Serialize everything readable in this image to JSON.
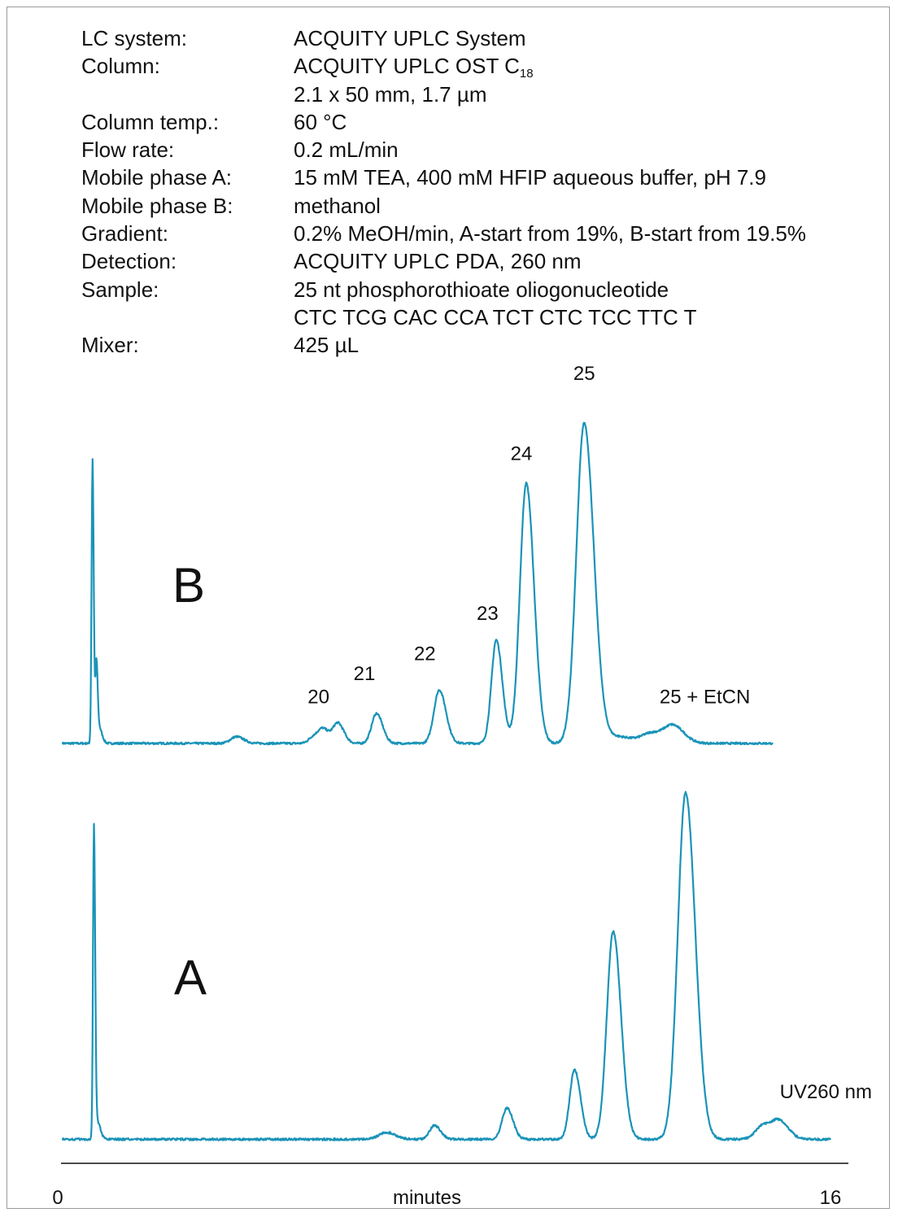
{
  "conditions": [
    {
      "label": "LC system:",
      "lines": [
        "ACQUITY UPLC System"
      ]
    },
    {
      "label": "Column:",
      "lines": [
        "ACQUITY UPLC OST C",
        "2.1 x 50 mm, 1.7 µm"
      ],
      "subscript": "18"
    },
    {
      "label": "Column temp.:",
      "lines": [
        "60 °C"
      ]
    },
    {
      "label": "Flow rate:",
      "lines": [
        "0.2 mL/min"
      ]
    },
    {
      "label": "Mobile phase A:",
      "lines": [
        "15 mM TEA, 400 mM HFIP aqueous buffer, pH 7.9"
      ]
    },
    {
      "label": "Mobile phase B:",
      "lines": [
        "methanol"
      ]
    },
    {
      "label": "Gradient:",
      "lines": [
        "0.2% MeOH/min, A-start from 19%, B-start from 19.5%"
      ]
    },
    {
      "label": "Detection:",
      "lines": [
        "ACQUITY UPLC PDA, 260 nm"
      ]
    },
    {
      "label": "Sample:",
      "lines": [
        "25 nt phosphorothioate oliogonucleotide",
        "CTC TCG CAC CCA TCT CTC TCC TTC T"
      ]
    },
    {
      "label": "Mixer:",
      "lines": [
        "425 µL"
      ]
    }
  ],
  "chart_data": {
    "type": "line",
    "xlabel": "minutes",
    "xlim": [
      0,
      16
    ],
    "x_tick_labels": [
      "0",
      "16"
    ],
    "line_color": "#1a93b8",
    "annotation": "UV260 nm",
    "series": [
      {
        "name": "B",
        "baseline": 0.02,
        "x_range": [
          0.1,
          14.8
        ],
        "peaks": [
          {
            "x": 0.72,
            "height": 0.85,
            "width": 0.02
          },
          {
            "x": 0.8,
            "height": 0.22,
            "width": 0.02
          },
          {
            "x": 0.85,
            "height": 0.05,
            "width": 0.05
          },
          {
            "x": 3.7,
            "height": 0.02,
            "width": 0.12
          },
          {
            "x": 5.3,
            "height": 0.02,
            "width": 0.1
          },
          {
            "x": 5.5,
            "height": 0.04,
            "width": 0.1
          },
          {
            "x": 5.8,
            "height": 0.06,
            "width": 0.1
          },
          {
            "x": 6.6,
            "height": 0.09,
            "width": 0.1
          },
          {
            "x": 7.9,
            "height": 0.16,
            "width": 0.11
          },
          {
            "x": 9.08,
            "height": 0.31,
            "width": 0.1
          },
          {
            "x": 9.7,
            "height": 0.78,
            "width": 0.13
          },
          {
            "x": 10.9,
            "height": 0.96,
            "width": 0.16
          },
          {
            "x": 11.6,
            "height": 0.02,
            "width": 0.25
          },
          {
            "x": 12.3,
            "height": 0.03,
            "width": 0.2
          },
          {
            "x": 12.75,
            "height": 0.05,
            "width": 0.18
          }
        ],
        "peak_labels": [
          {
            "text": "20",
            "x": 5.4,
            "y": 0.14
          },
          {
            "text": "21",
            "x": 6.35,
            "y": 0.21
          },
          {
            "text": "22",
            "x": 7.6,
            "y": 0.27
          },
          {
            "text": "23",
            "x": 8.9,
            "y": 0.39
          },
          {
            "text": "24",
            "x": 9.6,
            "y": 0.87
          },
          {
            "text": "25",
            "x": 10.9,
            "y": 1.11
          },
          {
            "text": "25 + EtCN",
            "x": 13.4,
            "y": 0.14
          }
        ]
      },
      {
        "name": "A",
        "baseline": 0.02,
        "x_range": [
          0.1,
          16.0
        ],
        "peaks": [
          {
            "x": 0.75,
            "height": 0.89,
            "width": 0.02
          },
          {
            "x": 0.82,
            "height": 0.05,
            "width": 0.05
          },
          {
            "x": 6.8,
            "height": 0.02,
            "width": 0.15
          },
          {
            "x": 7.8,
            "height": 0.04,
            "width": 0.1
          },
          {
            "x": 9.3,
            "height": 0.09,
            "width": 0.1
          },
          {
            "x": 10.7,
            "height": 0.2,
            "width": 0.1
          },
          {
            "x": 11.5,
            "height": 0.6,
            "width": 0.13
          },
          {
            "x": 13.0,
            "height": 1.0,
            "width": 0.16
          },
          {
            "x": 14.6,
            "height": 0.04,
            "width": 0.15
          },
          {
            "x": 14.95,
            "height": 0.05,
            "width": 0.15
          }
        ],
        "peak_labels": []
      }
    ]
  }
}
